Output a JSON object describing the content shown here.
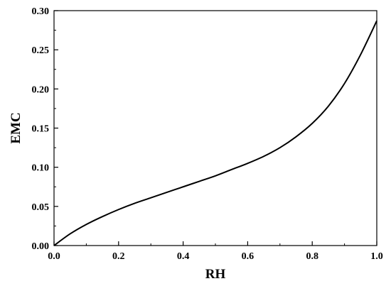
{
  "chart_data": {
    "type": "line",
    "title": "",
    "xlabel": "RH",
    "ylabel": "EMC",
    "xlim": [
      0.0,
      1.0
    ],
    "ylim": [
      0.0,
      0.3
    ],
    "grid": false,
    "legend": "none",
    "x_ticks": [
      "0.0",
      "0.2",
      "0.4",
      "0.6",
      "0.8",
      "1.0"
    ],
    "y_ticks": [
      "0.00",
      "0.05",
      "0.10",
      "0.15",
      "0.20",
      "0.25",
      "0.30"
    ],
    "series": [
      {
        "color": "#000000",
        "x": [
          0.0,
          0.05,
          0.1,
          0.15,
          0.2,
          0.25,
          0.3,
          0.35,
          0.4,
          0.45,
          0.5,
          0.55,
          0.6,
          0.65,
          0.7,
          0.75,
          0.8,
          0.85,
          0.9,
          0.95,
          1.0
        ],
        "y": [
          0.0,
          0.015,
          0.027,
          0.037,
          0.046,
          0.054,
          0.061,
          0.068,
          0.075,
          0.082,
          0.089,
          0.097,
          0.105,
          0.114,
          0.125,
          0.139,
          0.156,
          0.178,
          0.207,
          0.244,
          0.287
        ]
      }
    ]
  }
}
